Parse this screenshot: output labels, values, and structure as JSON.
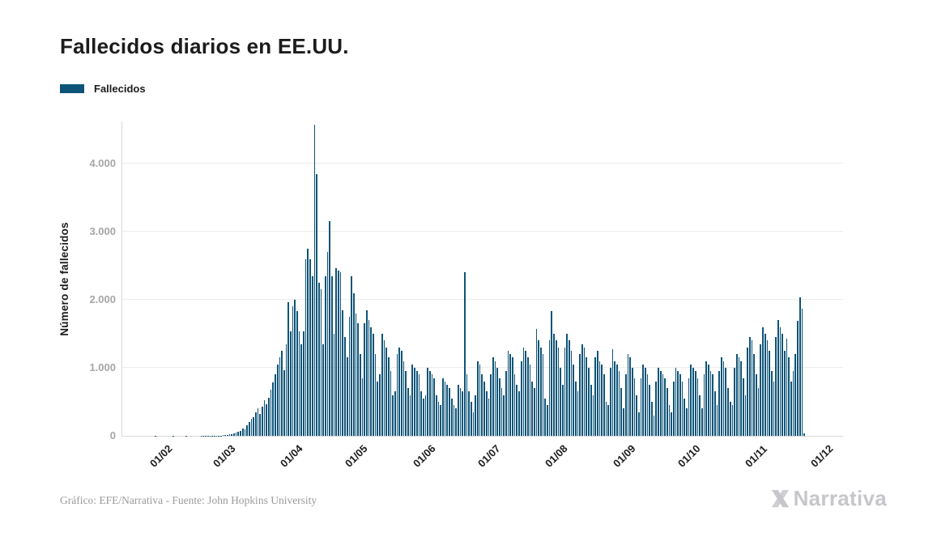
{
  "title": "Fallecidos diarios en EE.UU.",
  "legend": {
    "label": "Fallecidos"
  },
  "footer": {
    "credit": "Gráfico: EFE/Narrativa - Fuente: John Hopkins University",
    "logo_text": "Narrativa"
  },
  "colors": {
    "bar": "#0E5478",
    "grid": "#ececec",
    "axis": "#d9d9d9",
    "y_tick_text": "#a6a6a6",
    "x_tick_text": "#1c1c1c",
    "title_text": "#1c1c1c",
    "footer_text": "#9b9b9b",
    "logo": "#c6c6cb"
  },
  "chart_data": {
    "type": "bar",
    "title": "Fallecidos diarios en EE.UU.",
    "series_name": "Fallecidos",
    "xlabel": "",
    "ylabel": "Número de fallecidos",
    "ylim": [
      0,
      4619
    ],
    "grid": true,
    "legend_position": "top-left",
    "y_ticks": [
      {
        "value": 0,
        "label": "0"
      },
      {
        "value": 1000,
        "label": "1.000"
      },
      {
        "value": 2000,
        "label": "2.000"
      },
      {
        "value": 3000,
        "label": "3.000"
      },
      {
        "value": 4000,
        "label": "4.000"
      }
    ],
    "x_ticks": [
      {
        "label": "01/02",
        "day": 10
      },
      {
        "label": "01/03",
        "day": 39
      },
      {
        "label": "01/04",
        "day": 70
      },
      {
        "label": "01/05",
        "day": 100
      },
      {
        "label": "01/06",
        "day": 131
      },
      {
        "label": "01/07",
        "day": 161
      },
      {
        "label": "01/08",
        "day": 192
      },
      {
        "label": "01/09",
        "day": 223
      },
      {
        "label": "01/10",
        "day": 253
      },
      {
        "label": "01/11",
        "day": 284
      },
      {
        "label": "01/12",
        "day": 314
      }
    ],
    "total_days": 314,
    "values": [
      0,
      0,
      0,
      0,
      0,
      0,
      0,
      0,
      0,
      0,
      0,
      0,
      0,
      0,
      0,
      1,
      0,
      0,
      0,
      0,
      0,
      0,
      0,
      1,
      0,
      0,
      0,
      0,
      0,
      1,
      0,
      0,
      0,
      0,
      0,
      0,
      1,
      2,
      1,
      1,
      3,
      4,
      3,
      4,
      3,
      4,
      6,
      5,
      8,
      27,
      24,
      40,
      50,
      63,
      70,
      110,
      97,
      150,
      207,
      256,
      278,
      345,
      406,
      327,
      432,
      525,
      460,
      558,
      675,
      790,
      900,
      1050,
      1150,
      1250,
      968,
      1350,
      1970,
      1540,
      1900,
      2000,
      1830,
      1540,
      1350,
      1540,
      2600,
      2750,
      2600,
      2350,
      4570,
      3850,
      2250,
      2150,
      1350,
      2350,
      2700,
      3150,
      2350,
      1500,
      2470,
      2430,
      2400,
      1850,
      1450,
      1150,
      1750,
      2350,
      2100,
      1800,
      1650,
      1200,
      850,
      1650,
      1850,
      1700,
      1600,
      1500,
      1200,
      800,
      900,
      1500,
      1400,
      1300,
      1150,
      950,
      600,
      650,
      1200,
      1300,
      1250,
      1100,
      950,
      700,
      600,
      1050,
      1000,
      950,
      900,
      650,
      550,
      600,
      1000,
      950,
      900,
      850,
      600,
      500,
      450,
      850,
      800,
      750,
      700,
      550,
      450,
      400,
      750,
      700,
      650,
      2400,
      900,
      650,
      500,
      350,
      600,
      1100,
      1050,
      900,
      800,
      650,
      550,
      900,
      1150,
      1100,
      1000,
      850,
      700,
      600,
      950,
      1250,
      1200,
      1150,
      900,
      750,
      650,
      1100,
      1300,
      1250,
      1150,
      1050,
      800,
      700,
      1570,
      1400,
      1300,
      1200,
      550,
      450,
      1400,
      1830,
      1500,
      1400,
      1300,
      1000,
      750,
      1300,
      1500,
      1400,
      1250,
      1050,
      800,
      650,
      1200,
      1350,
      1300,
      1150,
      1000,
      750,
      600,
      1150,
      1250,
      1100,
      1050,
      900,
      500,
      450,
      1000,
      1270,
      1100,
      1050,
      950,
      700,
      400,
      900,
      1200,
      1150,
      1000,
      850,
      600,
      350,
      850,
      1050,
      1000,
      900,
      750,
      500,
      300,
      800,
      1000,
      950,
      900,
      850,
      700,
      450,
      350,
      800,
      1000,
      950,
      900,
      800,
      550,
      400,
      850,
      1050,
      1000,
      950,
      850,
      600,
      400,
      900,
      1100,
      1050,
      950,
      900,
      650,
      450,
      950,
      1150,
      1100,
      1000,
      700,
      500,
      450,
      1000,
      1200,
      1150,
      1100,
      850,
      600,
      1300,
      1450,
      1400,
      1200,
      900,
      700,
      1350,
      1600,
      1500,
      1400,
      1250,
      950,
      800,
      1450,
      1700,
      1600,
      1500,
      1250,
      1430,
      1150,
      800,
      950,
      1200,
      1690,
      2030,
      1870,
      30
    ]
  }
}
